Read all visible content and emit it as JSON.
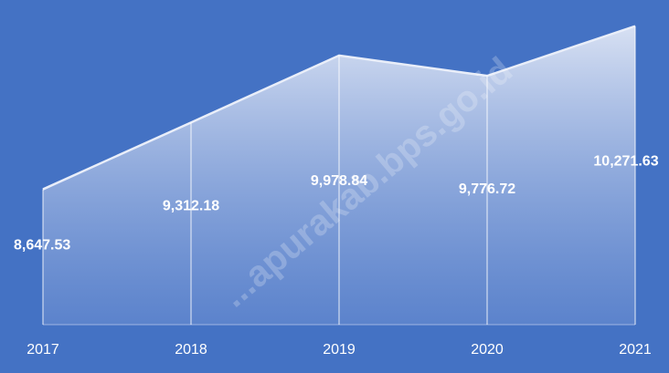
{
  "chart_data": {
    "type": "area",
    "categories": [
      "2017",
      "2018",
      "2019",
      "2020",
      "2021"
    ],
    "values": [
      8647.53,
      9312.18,
      9978.84,
      9776.72,
      10271.63
    ],
    "data_labels": [
      "8,647.53",
      "9,312.18",
      "9,978.84",
      "9,776.72",
      "10,271.63"
    ],
    "title": "",
    "xlabel": "",
    "ylabel": "",
    "ylim": [
      7300,
      10350
    ],
    "grid": false,
    "legend": "none",
    "colors": {
      "background": "#4472c4",
      "area_top": "#dfe6f5",
      "area_bottom": "#6f91d3",
      "line": "#e9eef9",
      "drop_line": "#ffffff",
      "text": "#ffffff"
    }
  },
  "watermark": "...apurakab.bps.go.id"
}
